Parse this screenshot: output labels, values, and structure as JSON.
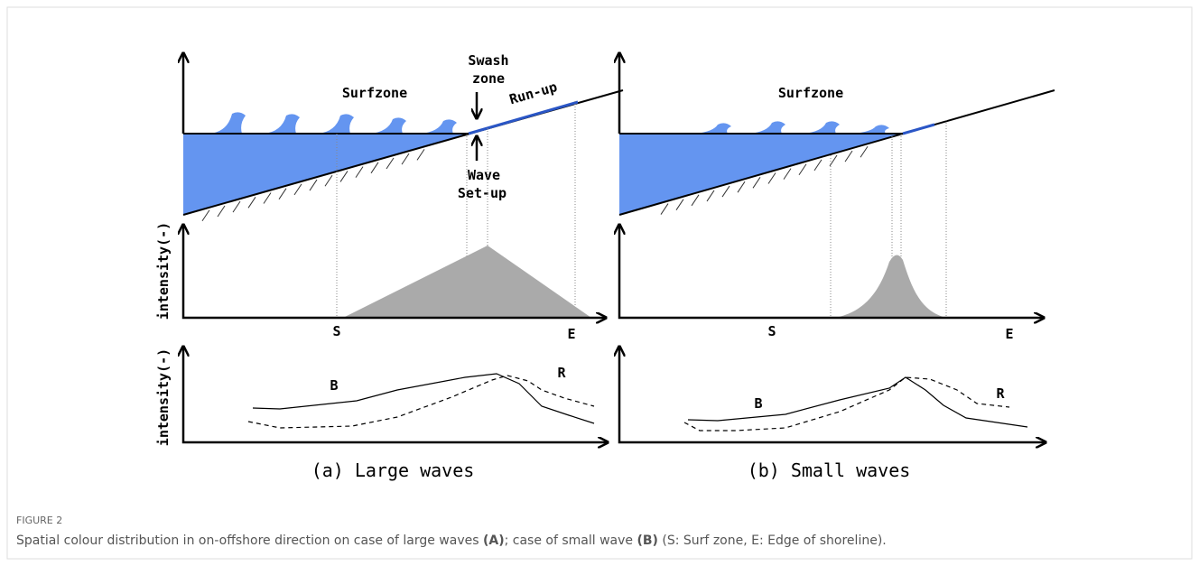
{
  "figure": {
    "panels": [
      {
        "label": "(a) Large waves",
        "surfzone": "Surfzone",
        "swash": [
          "Swash",
          "zone"
        ],
        "runup": "Run-up",
        "setup": [
          "Wave",
          "Set-up"
        ],
        "y_label_mid": "intensity(-)",
        "y_label_bottom": "intensity(-)",
        "s": "S",
        "e": "E",
        "b": "B",
        "r": "R"
      },
      {
        "label": "(b) Small waves",
        "surfzone": "Surfzone",
        "s": "S",
        "e": "E",
        "b": "B",
        "r": "R"
      }
    ]
  },
  "caption": {
    "figure_number": "FIGURE 2",
    "text1": "Spatial colour distribution in on-offshore direction on case of large waves ",
    "label_a": "(A)",
    "text2": "; case of small wave ",
    "label_b": "(B)",
    "text3": " (S: Surf zone, E: Edge of shoreline)."
  }
}
